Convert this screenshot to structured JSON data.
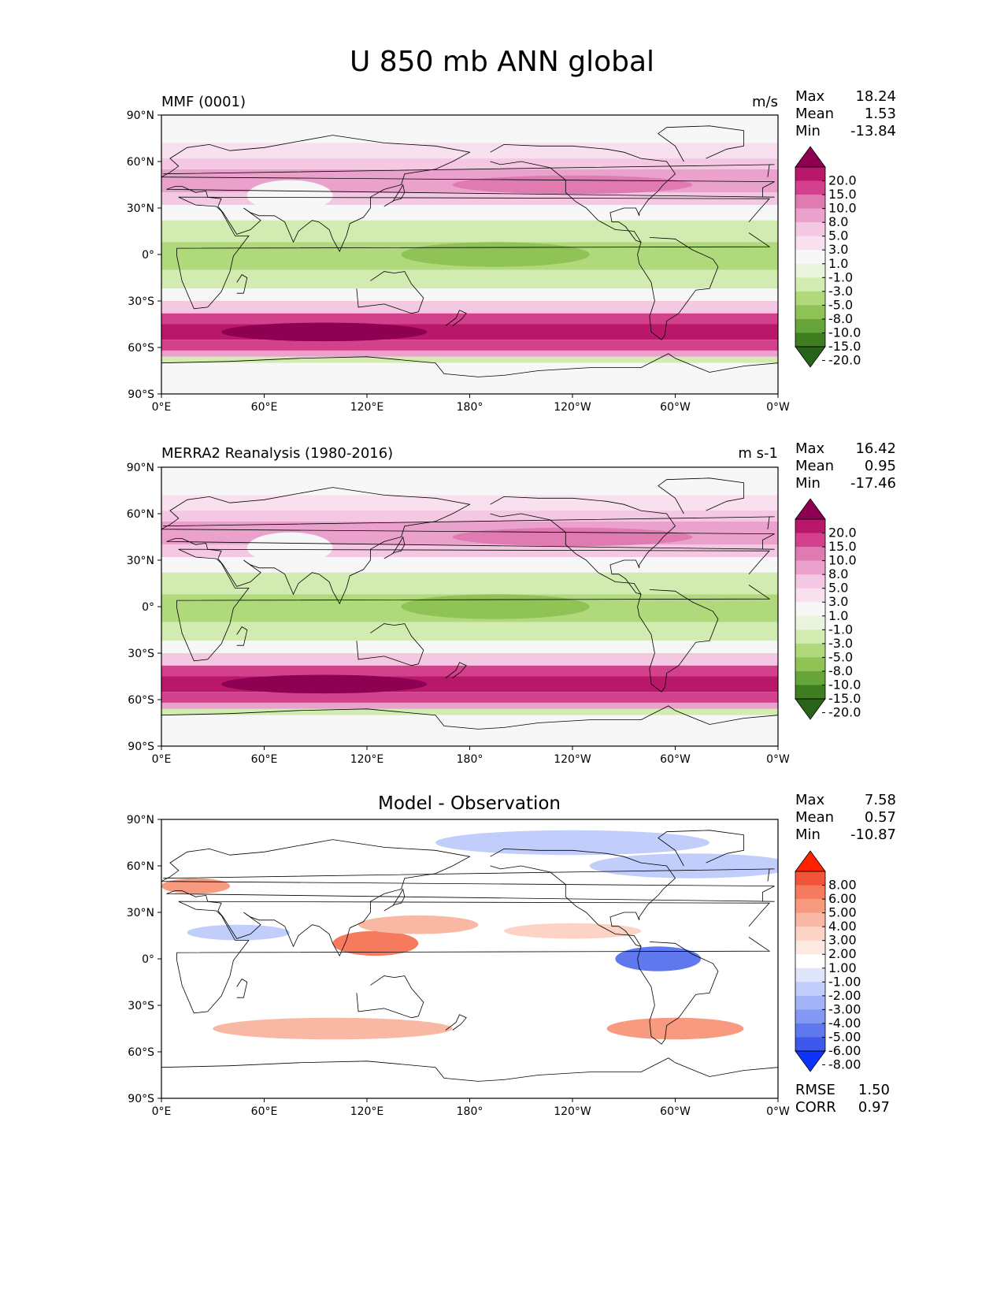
{
  "title": "U 850 mb ANN global",
  "axis_ticks": {
    "lat": [
      "90°N",
      "60°N",
      "30°N",
      "0°",
      "30°S",
      "60°S",
      "90°S"
    ],
    "lon": [
      "0°E",
      "60°E",
      "120°E",
      "180°",
      "120°W",
      "60°W",
      "0°W"
    ]
  },
  "panels": [
    {
      "title": "MMF (0001)",
      "units": "m/s",
      "stats": [
        {
          "label": "Max",
          "value": "18.24"
        },
        {
          "label": "Mean",
          "value": "1.53"
        },
        {
          "label": "Min",
          "value": "-13.84"
        }
      ],
      "colorbar": {
        "levels": [
          "20.0",
          "15.0",
          "10.0",
          "8.0",
          "5.0",
          "3.0",
          "1.0",
          "-1.0",
          "-3.0",
          "-5.0",
          "-8.0",
          "-10.0",
          "-15.0",
          "-20.0"
        ],
        "colors": [
          "#8e0152",
          "#b8176a",
          "#d3418d",
          "#e07bb1",
          "#eaa1cb",
          "#f4c8e2",
          "#f8e0ee",
          "#f7f7f7",
          "#eaf4dc",
          "#d2ebb0",
          "#b0d97c",
          "#8fc356",
          "#67a53a",
          "#3e7e21",
          "#276419"
        ]
      }
    },
    {
      "title": "MERRA2 Reanalysis (1980-2016)",
      "units": "m s-1",
      "stats": [
        {
          "label": "Max",
          "value": "16.42"
        },
        {
          "label": "Mean",
          "value": "0.95"
        },
        {
          "label": "Min",
          "value": "-17.46"
        }
      ],
      "colorbar": {
        "levels": [
          "20.0",
          "15.0",
          "10.0",
          "8.0",
          "5.0",
          "3.0",
          "1.0",
          "-1.0",
          "-3.0",
          "-5.0",
          "-8.0",
          "-10.0",
          "-15.0",
          "-20.0"
        ],
        "colors": [
          "#8e0152",
          "#b8176a",
          "#d3418d",
          "#e07bb1",
          "#eaa1cb",
          "#f4c8e2",
          "#f8e0ee",
          "#f7f7f7",
          "#eaf4dc",
          "#d2ebb0",
          "#b0d97c",
          "#8fc356",
          "#67a53a",
          "#3e7e21",
          "#276419"
        ]
      }
    },
    {
      "title": "Model - Observation",
      "stats": [
        {
          "label": "Max",
          "value": "7.58"
        },
        {
          "label": "Mean",
          "value": "0.57"
        },
        {
          "label": "Min",
          "value": "-10.87"
        }
      ],
      "metrics": [
        {
          "label": "RMSE",
          "value": "1.50"
        },
        {
          "label": "CORR",
          "value": "0.97"
        }
      ],
      "colorbar": {
        "levels": [
          "8.00",
          "6.00",
          "5.00",
          "4.00",
          "3.00",
          "2.00",
          "1.00",
          "-1.00",
          "-2.00",
          "-3.00",
          "-4.00",
          "-5.00",
          "-6.00",
          "-8.00"
        ],
        "colors": [
          "#ff2200",
          "#f2543a",
          "#f57a5e",
          "#f79a80",
          "#f9b8a4",
          "#fcd3c5",
          "#fde9e1",
          "#ffffff",
          "#dfe6fc",
          "#c1cdfa",
          "#a2b4f7",
          "#8499f3",
          "#6078ee",
          "#3d58eb",
          "#0d33ff"
        ]
      }
    }
  ]
}
